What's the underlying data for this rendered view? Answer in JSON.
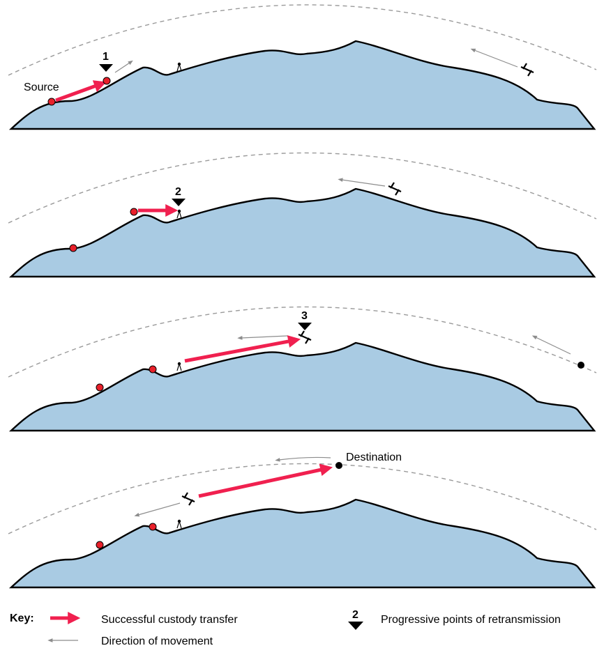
{
  "labels": {
    "source": "Source",
    "destination": "Destination"
  },
  "markers": [
    "1",
    "2",
    "3"
  ],
  "key": {
    "title": "Key:",
    "custody_transfer": "Successful custody transfer",
    "direction": "Direction of movement",
    "retransmission_number": "2",
    "retransmission": "Progressive points of retransmission"
  },
  "colors": {
    "terrain_fill": "#a9cbe3",
    "terrain_stroke": "#000000",
    "transfer_arrow": "#f0204f",
    "node_red": "#e8202a",
    "orbit_dash": "#9a9a9a",
    "direction_arrow": "#8c8c8c"
  },
  "icons": [
    "satellite-icon",
    "ground-antenna-icon",
    "retransmission-marker-icon"
  ]
}
